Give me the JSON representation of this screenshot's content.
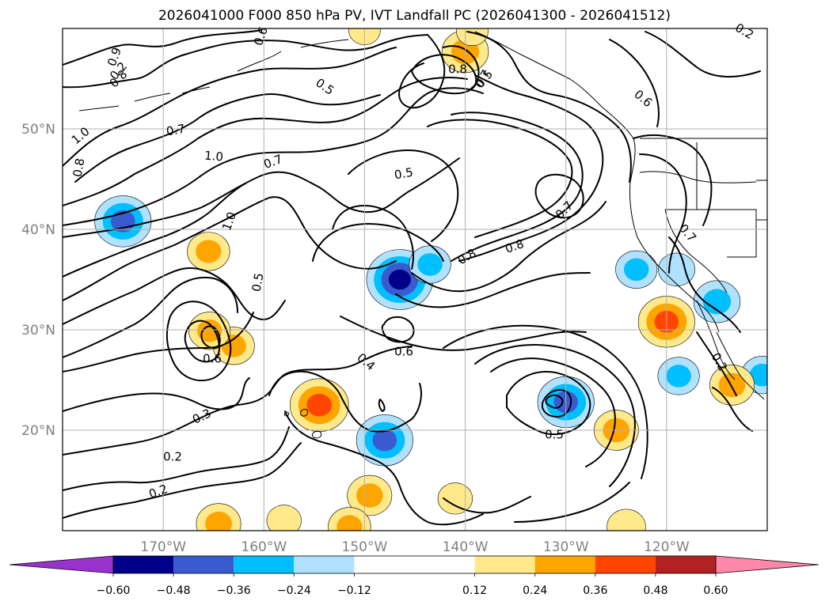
{
  "chart_data": {
    "type": "contour",
    "title": "2026041000 F000 850 hPa PV, IVT Landfall PC (2026041300 - 2026041512)",
    "projection": "PlateCarree",
    "xlim": [
      -180,
      -110
    ],
    "ylim": [
      10,
      60
    ],
    "grid": true,
    "x_ticks": [
      -170,
      -160,
      -150,
      -140,
      -130,
      -120
    ],
    "x_tick_labels": [
      "170°W",
      "160°W",
      "150°W",
      "140°W",
      "130°W",
      "120°W"
    ],
    "y_ticks": [
      20,
      30,
      40,
      50
    ],
    "y_tick_labels": [
      "20°N",
      "30°N",
      "40°N",
      "50°N"
    ],
    "contour_field": "850 hPa PV",
    "contour_label_values": [
      "0.9",
      "0.8",
      "0.7",
      "1.0",
      "0.8",
      "0.6",
      "0.5",
      "0.8",
      "0.7",
      "0.6",
      "0.2",
      "0.7",
      "1.0",
      "0.7",
      "0.5",
      "1.0",
      "0.8",
      "0.8",
      "0.7",
      "0.5",
      "0.2",
      "0.5",
      "0.6",
      "0.6",
      "0.4",
      "0.3",
      "0.2",
      "0.2",
      "0.5",
      "0.2"
    ],
    "filled_field": "IVT Landfall PC",
    "colorbar": {
      "extend": "both",
      "boundaries": [
        -0.72,
        -0.6,
        -0.48,
        -0.36,
        -0.24,
        -0.12,
        0.12,
        0.24,
        0.36,
        0.48,
        0.6,
        0.72
      ],
      "tick_values": [
        -0.6,
        -0.48,
        -0.36,
        -0.24,
        -0.12,
        0.12,
        0.24,
        0.36,
        0.48,
        0.6
      ],
      "tick_labels": [
        "−0.60",
        "−0.48",
        "−0.36",
        "−0.24",
        "−0.12",
        "0.12",
        "0.24",
        "0.36",
        "0.48",
        "0.60"
      ],
      "colors": [
        "#9932cc",
        "#00008b",
        "#3a5bcf",
        "#00bfff",
        "#b0e2ff",
        "#ffffff",
        "#ffe98a",
        "#ffa500",
        "#ff4500",
        "#b22222",
        "#ff88aa"
      ],
      "under_color": "#9932cc",
      "over_color": "#ff88aa"
    },
    "filled_features": [
      {
        "lon": -174,
        "lat": 40.8,
        "value": -0.4
      },
      {
        "lon": -146.5,
        "lat": 35.0,
        "value": -0.5
      },
      {
        "lon": -143.5,
        "lat": 36.5,
        "value": -0.25
      },
      {
        "lon": -148,
        "lat": 19.0,
        "value": -0.4
      },
      {
        "lon": -130,
        "lat": 22.8,
        "value": -0.4
      },
      {
        "lon": -115,
        "lat": 32.8,
        "value": -0.3
      },
      {
        "lon": -123,
        "lat": 36.0,
        "value": -0.25
      },
      {
        "lon": -119,
        "lat": 36.0,
        "value": -0.2
      },
      {
        "lon": -118.8,
        "lat": 25.4,
        "value": -0.25
      },
      {
        "lon": -110.5,
        "lat": 25.5,
        "value": -0.25
      },
      {
        "lon": -154.5,
        "lat": 22.5,
        "value": 0.42
      },
      {
        "lon": -120,
        "lat": 30.8,
        "value": 0.4
      },
      {
        "lon": -140,
        "lat": 57.7,
        "value": 0.3
      },
      {
        "lon": -165.5,
        "lat": 37.8,
        "value": 0.26
      },
      {
        "lon": -163,
        "lat": 28.4,
        "value": 0.25
      },
      {
        "lon": -165.4,
        "lat": 29.9,
        "value": 0.25
      },
      {
        "lon": -149.5,
        "lat": 13.5,
        "value": 0.28
      },
      {
        "lon": -125,
        "lat": 20.0,
        "value": 0.28
      },
      {
        "lon": -164.5,
        "lat": 10.7,
        "value": 0.28
      },
      {
        "lon": -151.5,
        "lat": 10.4,
        "value": 0.26
      },
      {
        "lon": -124,
        "lat": 10.4,
        "value": 0.22
      },
      {
        "lon": -113.5,
        "lat": 24.5,
        "value": 0.28
      },
      {
        "lon": -141,
        "lat": 13.2,
        "value": 0.18
      },
      {
        "lon": -158,
        "lat": 11.0,
        "value": 0.18
      },
      {
        "lon": -139.3,
        "lat": 59.7,
        "value": 0.15
      },
      {
        "lon": -150,
        "lat": 59.8,
        "value": 0.15
      }
    ]
  }
}
